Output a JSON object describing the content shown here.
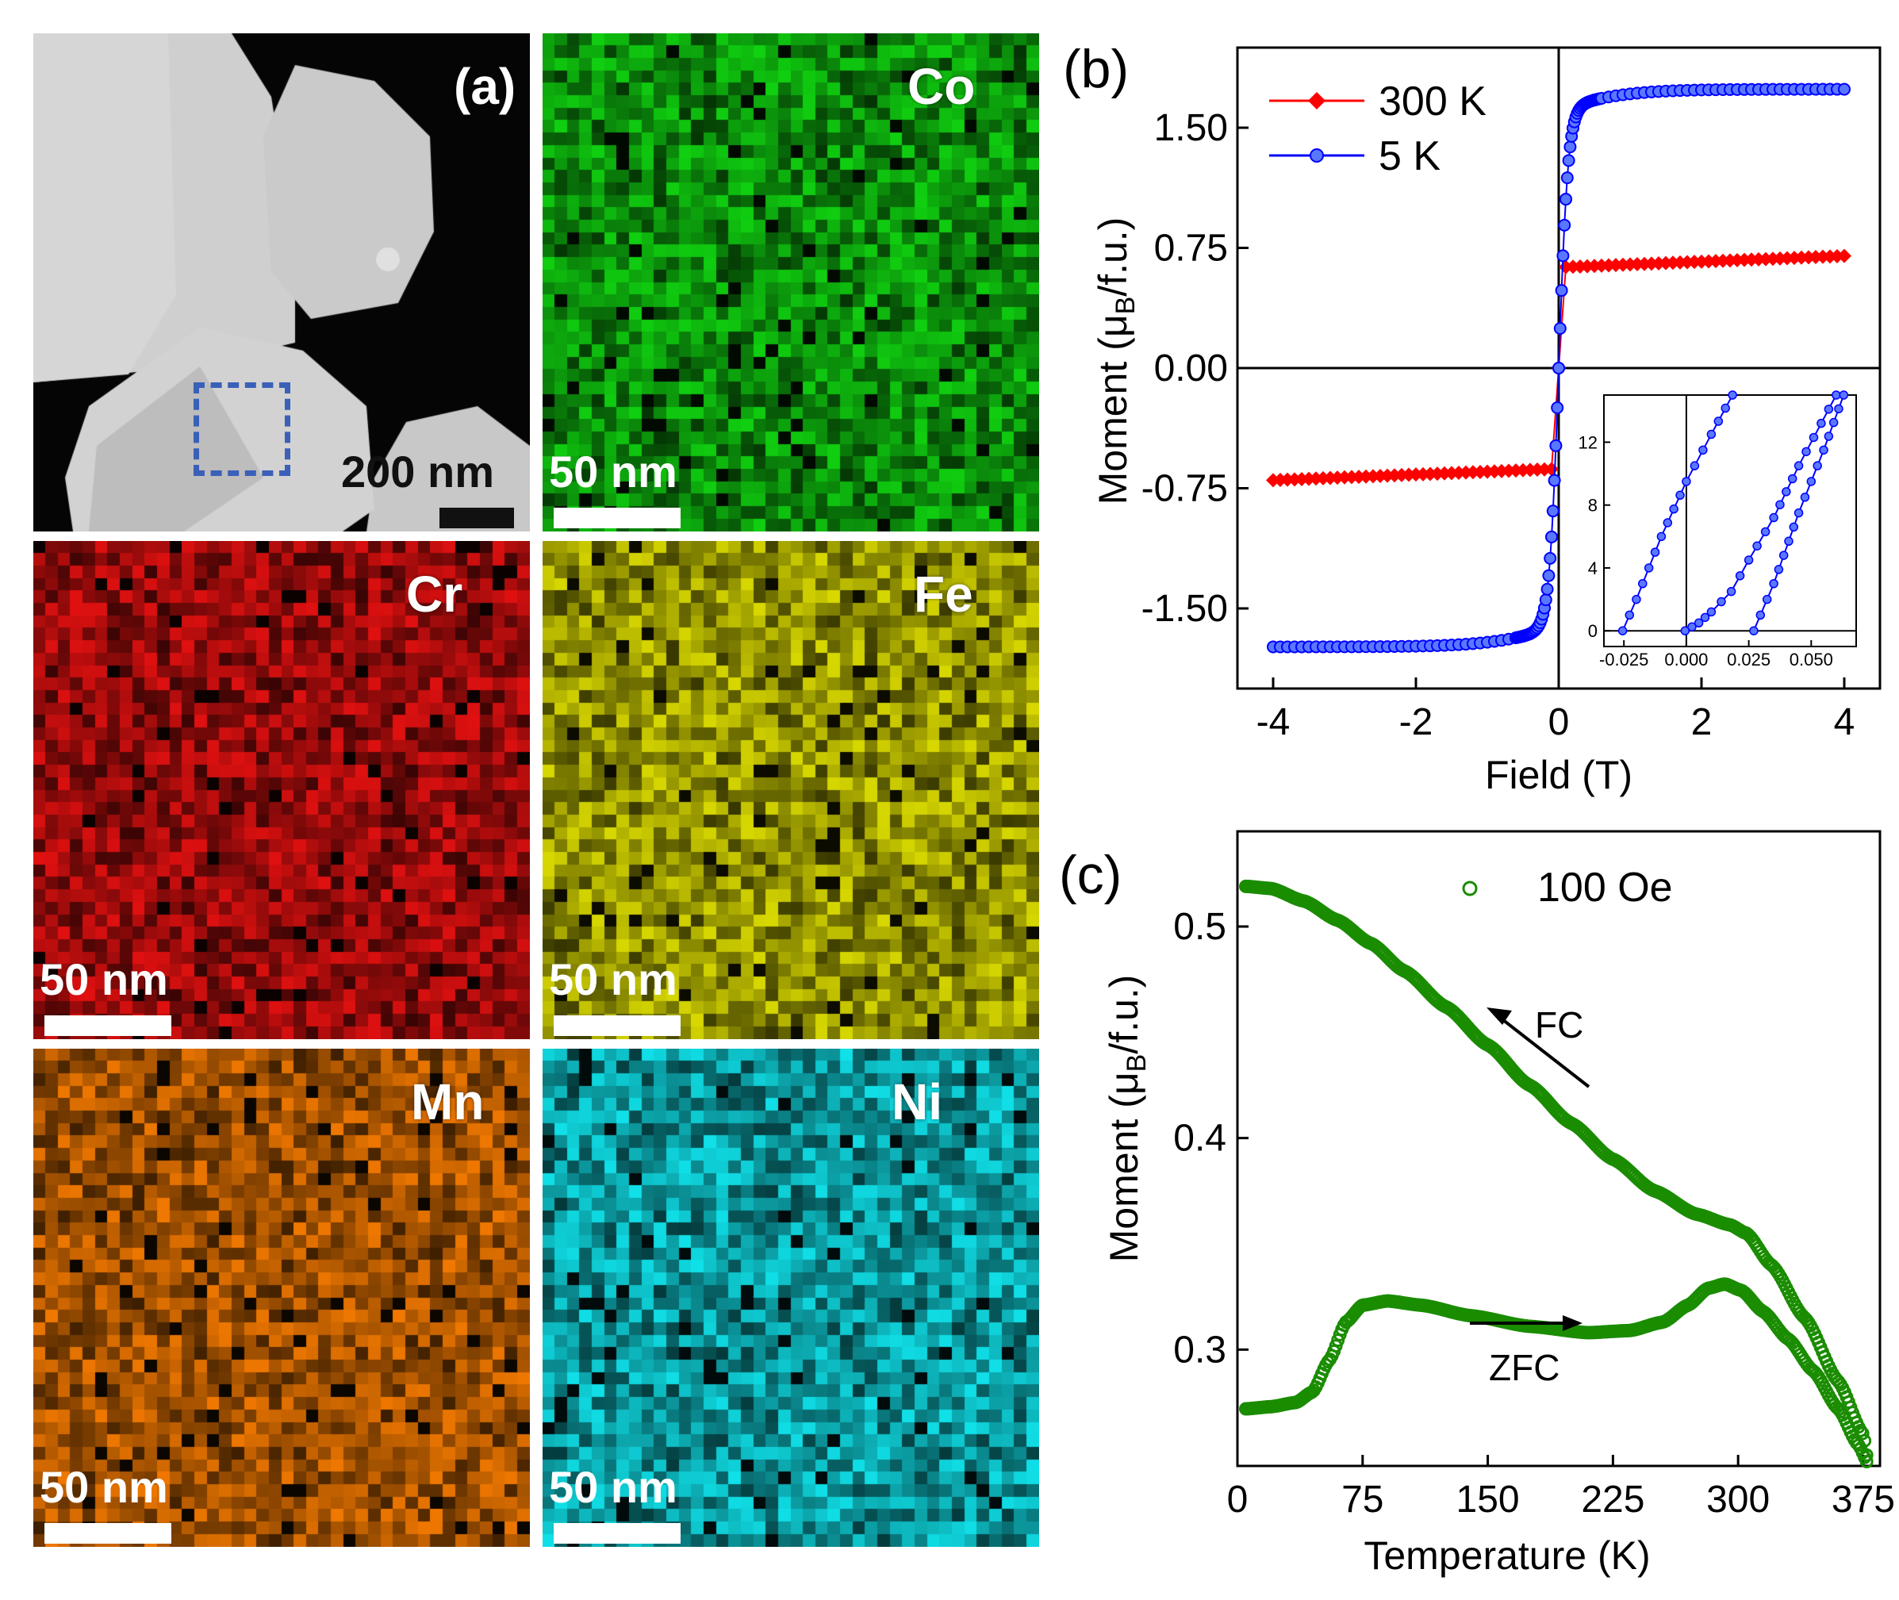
{
  "panel_a": {
    "label": "(a)",
    "sem_scale": "200 nm",
    "map_scale": "50 nm",
    "maps": [
      {
        "element": "Co",
        "color": "#10d010"
      },
      {
        "element": "Cr",
        "color": "#e01010"
      },
      {
        "element": "Fe",
        "color": "#d8d800"
      },
      {
        "element": "Mn",
        "color": "#f07800"
      },
      {
        "element": "Ni",
        "color": "#10e0e8"
      }
    ]
  },
  "chart_data": [
    {
      "panel": "(b)",
      "type": "scatter",
      "xlabel": "Field (T)",
      "ylabel": "Moment (μB/f.u.)",
      "xlim": [
        -4.5,
        4.5
      ],
      "ylim": [
        -2.0,
        2.0
      ],
      "xticks": [
        "-4",
        "-2",
        "0",
        "2",
        "4"
      ],
      "yticks": [
        "-1.50",
        "-0.75",
        "0.00",
        "0.75",
        "1.50"
      ],
      "legend_position": "top-left",
      "series": [
        {
          "name": "300 K",
          "color": "#ff0000",
          "marker": "diamond",
          "saturation": 0.7,
          "low_field_jump": 0.63
        },
        {
          "name": "5 K",
          "color": "#0000ff",
          "marker": "circle",
          "saturation": 1.74
        }
      ],
      "inset": {
        "xticks": [
          "-0.025",
          "0.000",
          "0.025",
          "0.050"
        ],
        "yticks": [
          "0",
          "4",
          "8",
          "12"
        ],
        "xlim": [
          -0.033,
          0.068
        ],
        "ylim": [
          -1,
          15
        ],
        "branch_up": [
          [
            -0.0255,
            0
          ],
          [
            -0.02,
            2.0
          ],
          [
            -0.01,
            6.0
          ],
          [
            0.0,
            9.5
          ],
          [
            0.01,
            12.5
          ],
          [
            0.0185,
            15
          ]
        ],
        "branch_down": [
          [
            -0.0005,
            0
          ],
          [
            0.005,
            0.5
          ],
          [
            0.01,
            1.2
          ],
          [
            0.018,
            2.5
          ],
          [
            0.025,
            4.5
          ],
          [
            0.035,
            7.2
          ],
          [
            0.045,
            10.5
          ],
          [
            0.06,
            15
          ]
        ],
        "branch_down2": [
          [
            0.027,
            0
          ],
          [
            0.035,
            3.0
          ],
          [
            0.045,
            7.5
          ],
          [
            0.055,
            11.5
          ],
          [
            0.063,
            15
          ]
        ]
      }
    },
    {
      "panel": "(c)",
      "type": "scatter",
      "xlabel": "Temperature (K)",
      "ylabel": "Moment (μB/f.u.)",
      "xlim": [
        0,
        385
      ],
      "ylim": [
        0.245,
        0.545
      ],
      "xticks": [
        "0",
        "75",
        "150",
        "225",
        "300",
        "375"
      ],
      "yticks": [
        "0.3",
        "0.4",
        "0.5"
      ],
      "legend": "100 Oe",
      "color": "#1a8c00",
      "annotations": [
        "FC",
        "ZFC"
      ],
      "fc": [
        [
          5,
          0.519
        ],
        [
          20,
          0.518
        ],
        [
          40,
          0.512
        ],
        [
          60,
          0.503
        ],
        [
          80,
          0.492
        ],
        [
          100,
          0.479
        ],
        [
          125,
          0.462
        ],
        [
          150,
          0.444
        ],
        [
          175,
          0.425
        ],
        [
          200,
          0.407
        ],
        [
          225,
          0.39
        ],
        [
          250,
          0.375
        ],
        [
          275,
          0.364
        ],
        [
          295,
          0.359
        ],
        [
          305,
          0.355
        ],
        [
          320,
          0.34
        ],
        [
          340,
          0.315
        ],
        [
          360,
          0.285
        ],
        [
          375,
          0.26
        ],
        [
          378,
          0.246
        ]
      ],
      "zfc": [
        [
          5,
          0.272
        ],
        [
          20,
          0.273
        ],
        [
          35,
          0.275
        ],
        [
          45,
          0.28
        ],
        [
          55,
          0.295
        ],
        [
          65,
          0.313
        ],
        [
          75,
          0.321
        ],
        [
          90,
          0.323
        ],
        [
          110,
          0.321
        ],
        [
          140,
          0.316
        ],
        [
          175,
          0.311
        ],
        [
          210,
          0.308
        ],
        [
          235,
          0.309
        ],
        [
          255,
          0.313
        ],
        [
          270,
          0.321
        ],
        [
          282,
          0.329
        ],
        [
          292,
          0.331
        ],
        [
          302,
          0.328
        ],
        [
          315,
          0.318
        ],
        [
          330,
          0.305
        ],
        [
          345,
          0.29
        ],
        [
          360,
          0.272
        ],
        [
          372,
          0.255
        ],
        [
          378,
          0.246
        ]
      ]
    }
  ]
}
